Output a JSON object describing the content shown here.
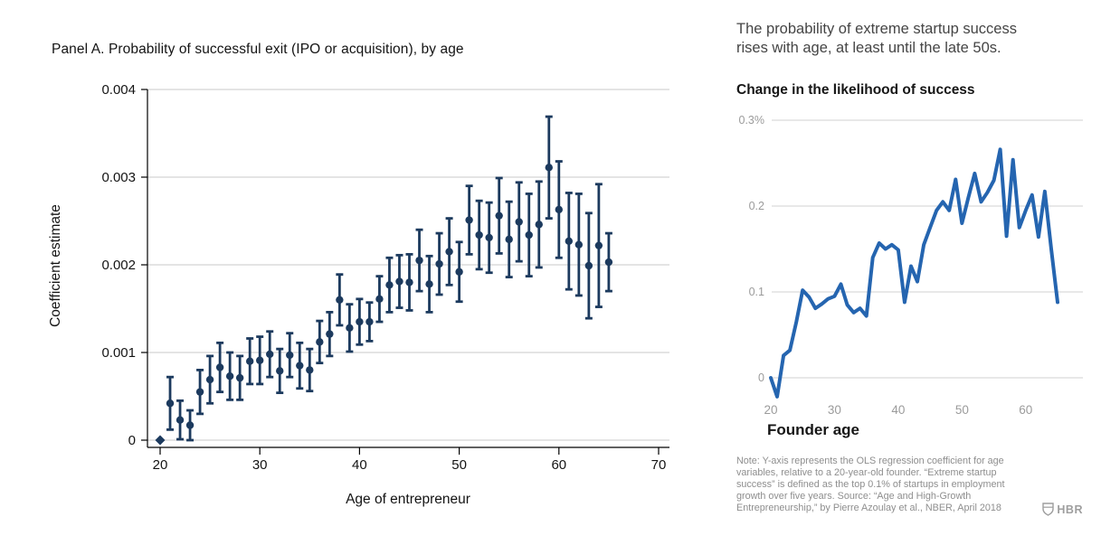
{
  "page": {
    "background": "#ffffff"
  },
  "left_panel": {
    "title": "Panel A. Probability of successful exit (IPO or acquisition), by age",
    "x_label": "Age of entrepreneur",
    "y_label": "Coefficient estimate",
    "colors": {
      "marker": "#1c3a5e",
      "grid": "#c8c8c8",
      "axis": "#000000",
      "tick_text": "#141414"
    }
  },
  "right_panel": {
    "headline": "The probability of extreme startup success rises with age, at least until the late 50s.",
    "chart_title": "Change in the likelihood of success",
    "x_label": "Founder age",
    "note": "Note: Y-axis represents the OLS regression coefficient for age variables, relative to a 20-year-old founder. “Extreme startup success” is defined as the top 0.1% of startups in employment growth over five years. Source: “Age and High-Growth Entrepreneurship,” by Pierre Azoulay et al., NBER, April 2018",
    "brand": "HBR",
    "colors": {
      "line": "#2565b0",
      "grid": "#d9d9d9",
      "muted_text": "#9b9b9b",
      "note_text": "#8e8e8e",
      "brand_gray": "#9e9e9e"
    }
  },
  "chart_data": [
    {
      "type": "scatter",
      "title": "Panel A. Probability of successful exit (IPO or acquisition), by age",
      "xlabel": "Age of entrepreneur",
      "ylabel": "Coefficient estimate",
      "xlim": [
        18.7,
        71
      ],
      "ylim": [
        0,
        0.004
      ],
      "grid": true,
      "x_ticks": [
        20,
        30,
        40,
        50,
        60,
        70
      ],
      "y_ticks": [
        {
          "v": 0,
          "label": "0"
        },
        {
          "v": 0.001,
          "label": "0.001"
        },
        {
          "v": 0.002,
          "label": "0.002"
        },
        {
          "v": 0.003,
          "label": "0.003"
        },
        {
          "v": 0.004,
          "label": "0.004"
        }
      ],
      "series": [
        {
          "name": "coefficient estimate with 95% CI",
          "marker": "circle",
          "reference_point_marker": "diamond",
          "x": [
            20,
            21,
            22,
            23,
            24,
            25,
            26,
            27,
            28,
            29,
            30,
            31,
            32,
            33,
            34,
            35,
            36,
            37,
            38,
            39,
            40,
            41,
            42,
            43,
            44,
            45,
            46,
            47,
            48,
            49,
            50,
            51,
            52,
            53,
            54,
            55,
            56,
            57,
            58,
            59,
            60,
            61,
            62,
            63,
            64,
            65
          ],
          "y": [
            0,
            0.00042,
            0.00023,
            0.00017,
            0.00055,
            0.00069,
            0.00083,
            0.00073,
            0.00071,
            0.0009,
            0.00091,
            0.00098,
            0.00079,
            0.00097,
            0.00085,
            0.0008,
            0.00112,
            0.00121,
            0.0016,
            0.00128,
            0.00135,
            0.00135,
            0.00161,
            0.00177,
            0.00181,
            0.0018,
            0.00205,
            0.00178,
            0.00201,
            0.00215,
            0.00192,
            0.00251,
            0.00234,
            0.00231,
            0.00256,
            0.00229,
            0.00249,
            0.00234,
            0.00246,
            0.00311,
            0.00263,
            0.00227,
            0.00223,
            0.00199,
            0.00222,
            0.00203
          ],
          "ci_half_width": [
            0,
            0.0003,
            0.00022,
            0.00017,
            0.00025,
            0.00027,
            0.00028,
            0.00027,
            0.00025,
            0.00026,
            0.00027,
            0.00026,
            0.00025,
            0.00025,
            0.00026,
            0.00024,
            0.00024,
            0.00025,
            0.00029,
            0.00027,
            0.00026,
            0.00022,
            0.00026,
            0.00031,
            0.0003,
            0.00032,
            0.00035,
            0.00032,
            0.00035,
            0.00038,
            0.00034,
            0.00039,
            0.00039,
            0.0004,
            0.00043,
            0.00043,
            0.00045,
            0.00047,
            0.00049,
            0.00058,
            0.00055,
            0.00055,
            0.00058,
            0.0006,
            0.0007,
            0.00033
          ]
        }
      ]
    },
    {
      "type": "line",
      "title": "Change in the likelihood of success",
      "xlabel": "Founder age",
      "ylabel": "",
      "xlim": [
        19,
        69
      ],
      "ylim": [
        -0.05,
        0.3
      ],
      "grid": true,
      "x_ticks": [
        20,
        30,
        40,
        50,
        60
      ],
      "y_ticks": [
        {
          "v": 0,
          "label": "0"
        },
        {
          "v": 0.1,
          "label": "0.1"
        },
        {
          "v": 0.2,
          "label": "0.2"
        },
        {
          "v": 0.3,
          "label": "0.3%"
        }
      ],
      "series": [
        {
          "name": "change in likelihood of success (%)",
          "x": [
            20,
            21,
            22,
            23,
            24,
            25,
            26,
            27,
            28,
            29,
            30,
            31,
            32,
            33,
            34,
            35,
            36,
            37,
            38,
            39,
            40,
            41,
            42,
            43,
            44,
            45,
            46,
            47,
            48,
            49,
            50,
            51,
            52,
            53,
            54,
            55,
            56,
            57,
            58,
            59,
            60,
            61,
            62,
            63,
            64,
            65
          ],
          "y": [
            0,
            -0.022,
            0.026,
            0.032,
            0.065,
            0.102,
            0.094,
            0.081,
            0.086,
            0.092,
            0.095,
            0.109,
            0.085,
            0.076,
            0.081,
            0.072,
            0.14,
            0.157,
            0.15,
            0.155,
            0.149,
            0.088,
            0.13,
            0.112,
            0.155,
            0.175,
            0.195,
            0.205,
            0.195,
            0.231,
            0.18,
            0.21,
            0.238,
            0.205,
            0.216,
            0.23,
            0.266,
            0.165,
            0.254,
            0.175,
            0.195,
            0.213,
            0.164,
            0.217,
            0.15,
            0.088
          ]
        }
      ]
    }
  ]
}
